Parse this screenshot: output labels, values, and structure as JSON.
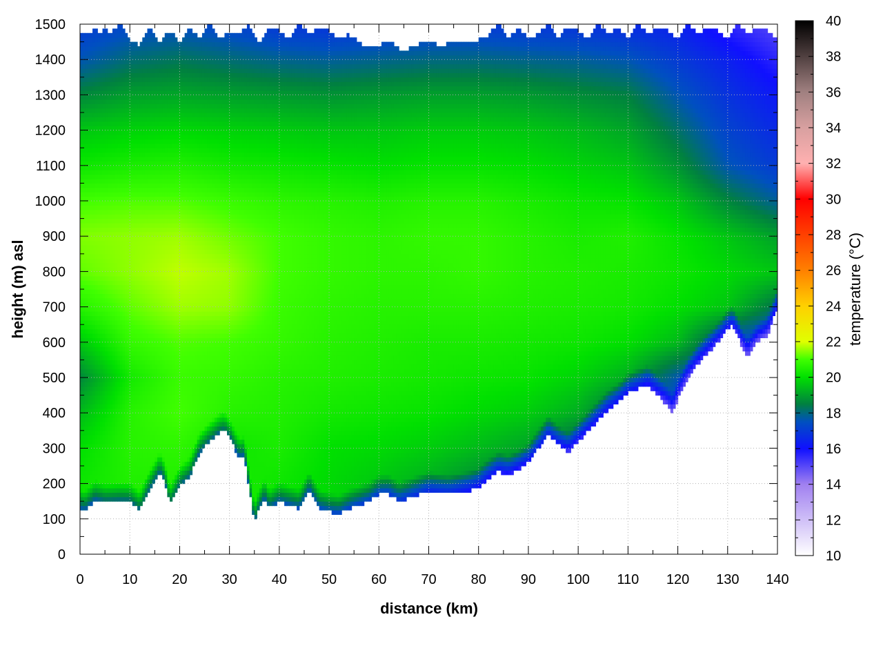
{
  "chart_data": {
    "type": "heatmap",
    "title": "",
    "xlabel": "distance (km)",
    "ylabel": "height (m) asl",
    "xlim": [
      0,
      140
    ],
    "ylim": [
      0,
      1500
    ],
    "x_ticks": [
      0,
      10,
      20,
      30,
      40,
      50,
      60,
      70,
      80,
      90,
      100,
      110,
      120,
      130,
      140
    ],
    "y_ticks": [
      0,
      100,
      200,
      300,
      400,
      500,
      600,
      700,
      800,
      900,
      1000,
      1100,
      1200,
      1300,
      1400,
      1500
    ],
    "grid": true,
    "colorbar": {
      "label": "temperature (°C)",
      "range": [
        10,
        40
      ],
      "ticks": [
        10,
        12,
        14,
        16,
        18,
        20,
        22,
        24,
        26,
        28,
        30,
        32,
        34,
        36,
        38,
        40
      ],
      "colors": [
        {
          "value": 10,
          "color": "#ffffff"
        },
        {
          "value": 14,
          "color": "#a080f0"
        },
        {
          "value": 16,
          "color": "#1010ff"
        },
        {
          "value": 17.5,
          "color": "#0050c0"
        },
        {
          "value": 18.5,
          "color": "#008040"
        },
        {
          "value": 20,
          "color": "#00e000"
        },
        {
          "value": 21,
          "color": "#40ff00"
        },
        {
          "value": 22,
          "color": "#e0ff00"
        },
        {
          "value": 24,
          "color": "#ffd000"
        },
        {
          "value": 26,
          "color": "#ff8000"
        },
        {
          "value": 28,
          "color": "#ff4000"
        },
        {
          "value": 30,
          "color": "#ff0000"
        },
        {
          "value": 32,
          "color": "#ffb0b0"
        },
        {
          "value": 34,
          "color": "#d8a0a0"
        },
        {
          "value": 36,
          "color": "#a08080"
        },
        {
          "value": 38,
          "color": "#504040"
        },
        {
          "value": 40,
          "color": "#000000"
        }
      ]
    },
    "terrain": {
      "x": [
        0,
        1,
        3,
        5,
        8,
        10,
        12,
        14,
        16,
        17,
        18,
        19,
        20,
        22,
        24,
        26,
        28,
        29,
        30,
        31,
        32,
        33,
        34,
        35,
        36,
        37,
        38,
        40,
        42,
        44,
        46,
        48,
        50,
        52,
        54,
        56,
        58,
        60,
        62,
        64,
        66,
        68,
        70,
        72,
        74,
        76,
        78,
        80,
        82,
        84,
        86,
        88,
        90,
        92,
        94,
        96,
        98,
        100,
        102,
        104,
        106,
        108,
        110,
        112,
        114,
        116,
        118,
        119,
        120,
        122,
        124,
        125,
        126,
        128,
        130,
        131,
        132,
        133,
        134,
        136,
        138,
        140
      ],
      "y": [
        130,
        125,
        155,
        145,
        150,
        150,
        125,
        185,
        235,
        210,
        140,
        165,
        195,
        220,
        290,
        320,
        345,
        350,
        330,
        300,
        275,
        280,
        180,
        90,
        130,
        160,
        130,
        150,
        140,
        130,
        180,
        130,
        120,
        115,
        130,
        140,
        150,
        170,
        170,
        150,
        160,
        170,
        180,
        175,
        170,
        175,
        180,
        190,
        215,
        235,
        225,
        240,
        260,
        300,
        340,
        310,
        290,
        320,
        350,
        380,
        410,
        430,
        460,
        470,
        480,
        450,
        420,
        400,
        440,
        500,
        540,
        555,
        570,
        600,
        640,
        650,
        620,
        580,
        555,
        600,
        620,
        700
      ]
    },
    "field": {
      "x": [
        0,
        10,
        20,
        30,
        40,
        50,
        60,
        70,
        80,
        90,
        100,
        110,
        120,
        130,
        140
      ],
      "y": [
        0,
        100,
        200,
        300,
        400,
        500,
        600,
        700,
        800,
        900,
        1000,
        1100,
        1200,
        1300,
        1400,
        1500
      ],
      "temperature": [
        [
          20.0,
          20.0,
          20.0,
          20.0,
          20.0,
          19.9,
          19.6,
          19.2,
          18.6,
          17.4,
          17.0,
          17.0,
          16.8,
          16.6,
          16.6
        ],
        [
          20.2,
          20.5,
          20.5,
          20.4,
          20.2,
          19.9,
          19.6,
          19.2,
          18.6,
          17.4,
          17.0,
          17.0,
          16.8,
          16.6,
          16.6
        ],
        [
          20.2,
          20.5,
          20.5,
          20.4,
          20.2,
          19.9,
          19.6,
          19.2,
          18.6,
          17.4,
          17.0,
          17.0,
          16.8,
          16.6,
          16.6
        ],
        [
          20.0,
          20.6,
          20.7,
          20.2,
          20.4,
          20.0,
          19.9,
          19.7,
          19.4,
          19.0,
          17.8,
          17.2,
          17.0,
          16.8,
          16.7
        ],
        [
          19.4,
          20.6,
          21.0,
          20.6,
          20.5,
          20.3,
          20.2,
          20.1,
          19.9,
          19.7,
          19.2,
          17.8,
          17.0,
          16.8,
          16.7
        ],
        [
          18.6,
          20.3,
          20.9,
          20.8,
          20.6,
          20.5,
          20.4,
          20.3,
          20.2,
          20.1,
          19.8,
          19.2,
          17.6,
          17.0,
          16.8
        ],
        [
          19.6,
          20.8,
          21.1,
          21.0,
          20.8,
          20.6,
          20.5,
          20.4,
          20.4,
          20.3,
          20.2,
          20.0,
          19.4,
          17.4,
          16.8
        ],
        [
          20.6,
          21.2,
          21.6,
          21.5,
          20.9,
          20.7,
          20.6,
          20.6,
          20.6,
          20.5,
          20.4,
          20.3,
          20.0,
          19.6,
          18.2
        ],
        [
          21.2,
          21.5,
          21.8,
          21.6,
          21.0,
          20.8,
          20.7,
          20.7,
          20.8,
          20.6,
          20.5,
          20.4,
          20.2,
          19.9,
          19.6
        ],
        [
          21.4,
          21.5,
          21.6,
          21.3,
          21.0,
          20.8,
          20.7,
          20.8,
          20.8,
          20.6,
          20.4,
          20.5,
          20.1,
          19.6,
          19.0
        ],
        [
          21.0,
          21.1,
          21.1,
          20.9,
          20.7,
          20.6,
          20.5,
          20.6,
          20.6,
          20.4,
          20.2,
          20.1,
          19.6,
          18.6,
          17.8
        ],
        [
          20.2,
          20.4,
          20.5,
          20.3,
          20.2,
          20.1,
          20.0,
          20.1,
          20.1,
          20.0,
          19.8,
          19.6,
          18.8,
          17.6,
          17.0
        ],
        [
          19.6,
          19.8,
          19.9,
          19.8,
          19.7,
          19.6,
          19.6,
          19.7,
          19.7,
          19.6,
          19.4,
          19.1,
          18.2,
          17.2,
          16.6
        ],
        [
          18.6,
          19.0,
          19.1,
          19.0,
          18.9,
          18.8,
          18.9,
          19.0,
          19.0,
          18.9,
          18.7,
          18.5,
          17.6,
          16.8,
          16.2
        ],
        [
          17.6,
          18.1,
          18.3,
          18.1,
          17.9,
          17.8,
          17.9,
          18.0,
          18.0,
          17.9,
          17.8,
          17.6,
          17.0,
          16.4,
          15.6
        ],
        [
          17.0,
          17.3,
          17.4,
          17.2,
          16.9,
          16.8,
          16.9,
          17.0,
          17.0,
          16.9,
          16.8,
          16.6,
          16.4,
          15.6,
          15.0
        ]
      ]
    },
    "top_boundary": {
      "x": [
        0,
        1,
        2,
        3,
        4,
        5,
        6,
        8,
        10,
        12,
        14,
        16,
        18,
        20,
        22,
        24,
        26,
        28,
        30,
        32,
        34,
        36,
        38,
        40,
        42,
        44,
        46,
        48,
        50,
        52,
        54,
        56,
        58,
        60,
        62,
        64,
        66,
        68,
        70,
        72,
        74,
        76,
        78,
        80,
        82,
        84,
        86,
        88,
        90,
        92,
        94,
        96,
        98,
        100,
        102,
        104,
        106,
        108,
        110,
        112,
        114,
        116,
        118,
        120,
        122,
        124,
        126,
        128,
        130,
        132,
        134,
        136,
        138,
        140
      ],
      "y": [
        1480,
        1475,
        1470,
        1500,
        1460,
        1500,
        1470,
        1500,
        1450,
        1440,
        1490,
        1450,
        1480,
        1450,
        1490,
        1460,
        1500,
        1460,
        1480,
        1470,
        1500,
        1440,
        1495,
        1480,
        1460,
        1500,
        1470,
        1490,
        1480,
        1460,
        1470,
        1450,
        1430,
        1440,
        1455,
        1430,
        1430,
        1445,
        1450,
        1440,
        1445,
        1445,
        1450,
        1455,
        1470,
        1500,
        1460,
        1490,
        1460,
        1470,
        1500,
        1460,
        1495,
        1480,
        1460,
        1500,
        1470,
        1490,
        1460,
        1500,
        1470,
        1490,
        1480,
        1460,
        1500,
        1470,
        1490,
        1480,
        1460,
        1500,
        1470,
        1490,
        1480,
        1460
      ]
    }
  }
}
